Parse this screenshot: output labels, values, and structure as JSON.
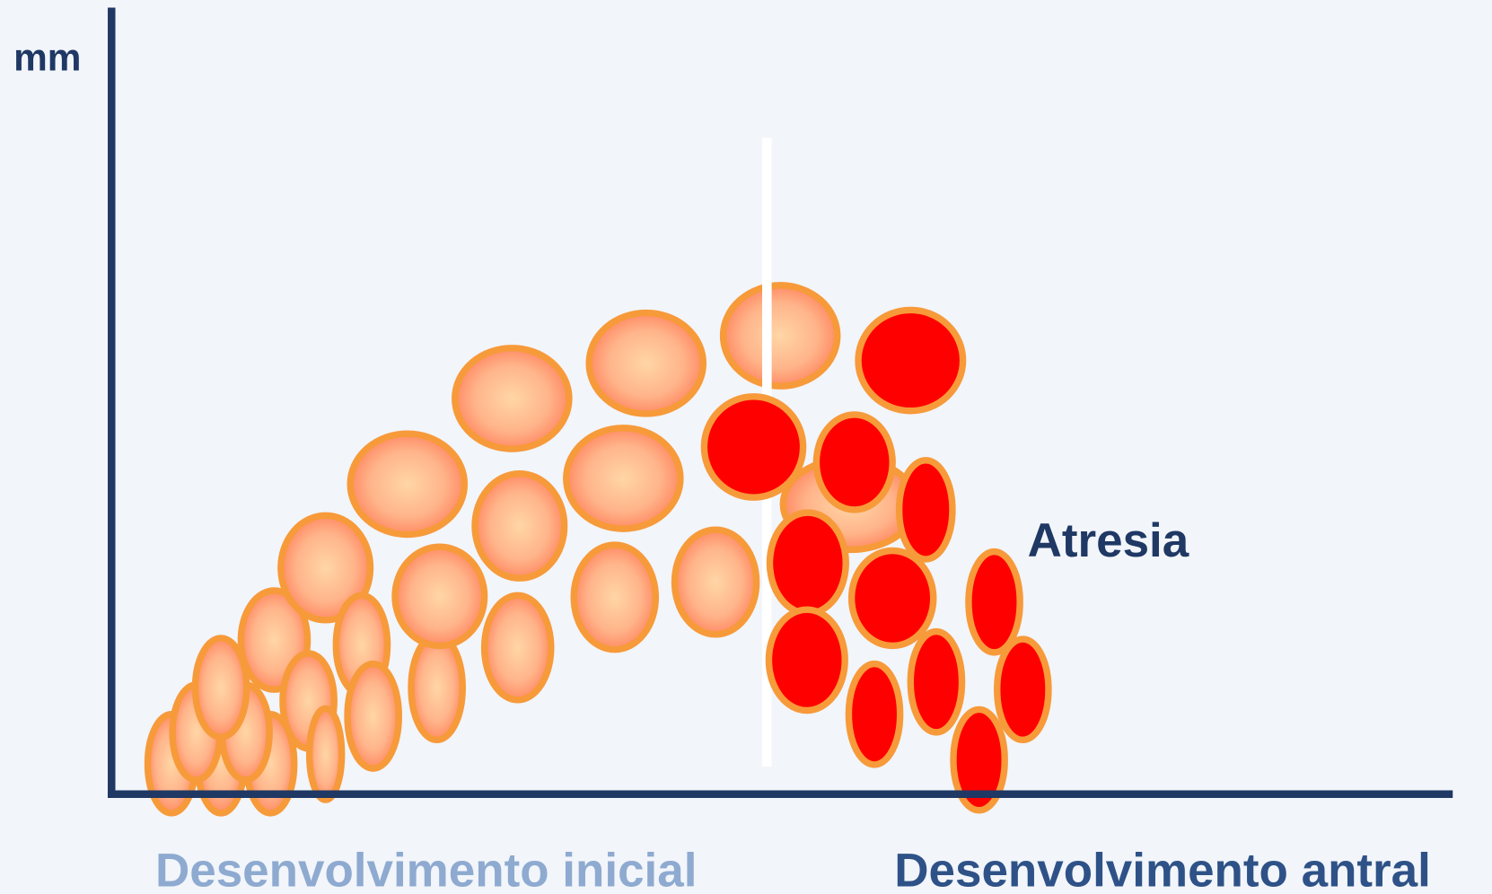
{
  "labels": {
    "y_axis": "mm",
    "atresia": "Atresia",
    "phase_initial": "Desenvolvimento inicial",
    "phase_antral": "Desenvolvimento antral"
  }
}
